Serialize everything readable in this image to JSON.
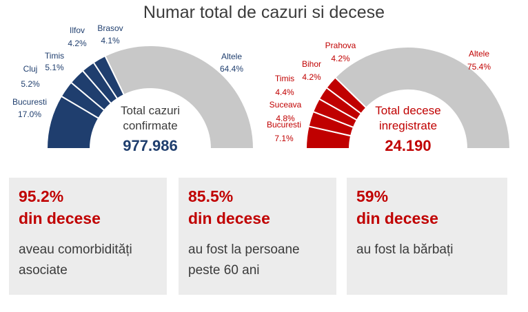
{
  "title": "Numar total de cazuri si decese",
  "chart_data": [
    {
      "type": "pie",
      "variant": "half-donut",
      "accent": "#1f3e6e",
      "rest_color": "#c8c8c8",
      "label_color": "#1f3e6e",
      "center_label_line1": "Total cazuri",
      "center_label_line2": "confirmate",
      "total": "977.986",
      "slices": [
        {
          "name": "Bucuresti",
          "value": 17.0,
          "label": "17.0%"
        },
        {
          "name": "Cluj",
          "value": 5.2,
          "label": "5.2%"
        },
        {
          "name": "Timis",
          "value": 5.1,
          "label": "5.1%"
        },
        {
          "name": "Ilfov",
          "value": 4.2,
          "label": "4.2%"
        },
        {
          "name": "Brasov",
          "value": 4.1,
          "label": "4.1%"
        },
        {
          "name": "Altele",
          "value": 64.4,
          "label": "64.4%"
        }
      ]
    },
    {
      "type": "pie",
      "variant": "half-donut",
      "accent": "#c00000",
      "rest_color": "#c8c8c8",
      "label_color": "#c00000",
      "center_label_line1": "Total decese",
      "center_label_line2": "inregistrate",
      "total": "24.190",
      "slices": [
        {
          "name": "Bucuresti",
          "value": 7.1,
          "label": "7.1%"
        },
        {
          "name": "Suceava",
          "value": 4.8,
          "label": "4.8%"
        },
        {
          "name": "Timis",
          "value": 4.4,
          "label": "4.4%"
        },
        {
          "name": "Bihor",
          "value": 4.2,
          "label": "4.2%"
        },
        {
          "name": "Prahova",
          "value": 4.2,
          "label": "4.2%"
        },
        {
          "name": "Altele",
          "value": 75.4,
          "label": "75.4%"
        }
      ]
    }
  ],
  "cards": [
    {
      "pct": "95.2%",
      "sub": "din decese",
      "desc": "aveau comorbidități asociate"
    },
    {
      "pct": "85.5%",
      "sub": "din decese",
      "desc": "au fost la persoane peste 60 ani"
    },
    {
      "pct": "59%",
      "sub": "din decese",
      "desc": "au fost la bărbați"
    }
  ]
}
